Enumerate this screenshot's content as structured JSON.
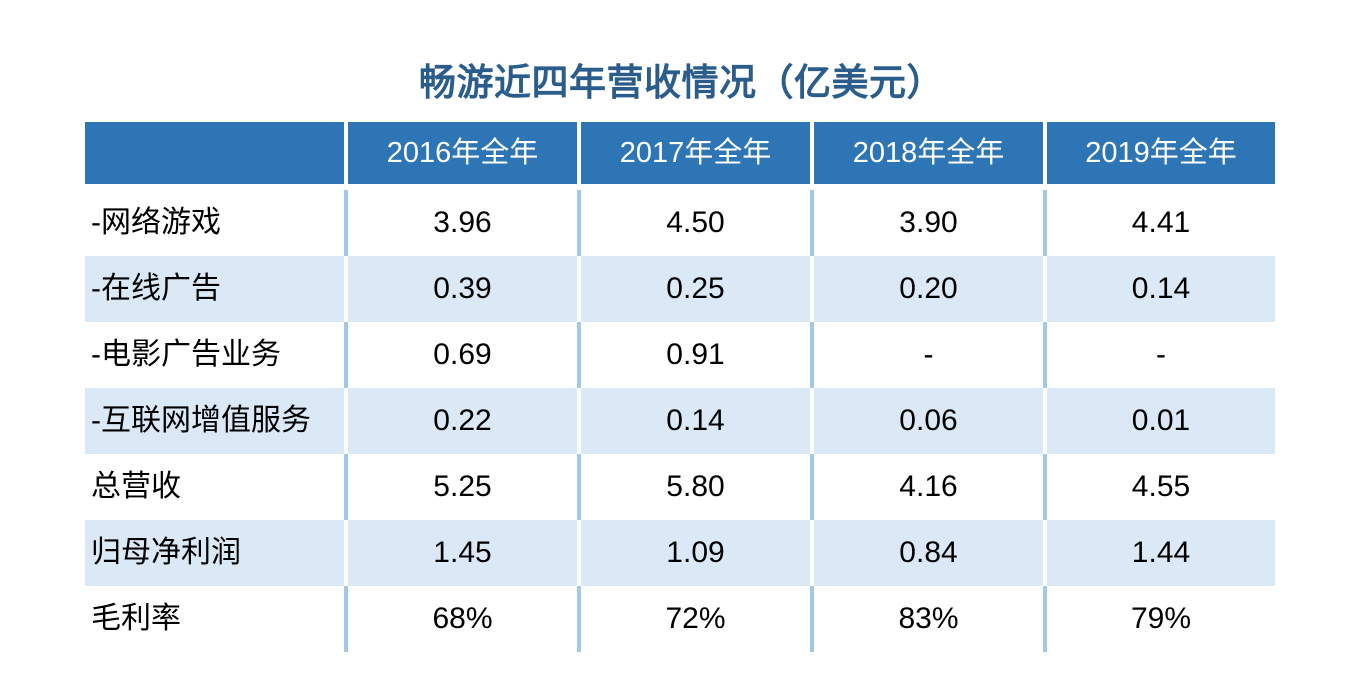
{
  "title": "畅游近四年营收情况（亿美元）",
  "colors": {
    "title_text": "#2b5d8c",
    "header_bg": "#2e75b6",
    "header_text": "#ffffff",
    "band_row_bg": "#dbe9f6",
    "column_separator": "#a3c7e8",
    "body_text": "#000000"
  },
  "chart_data": {
    "type": "table",
    "title": "畅游近四年营收情况（亿美元）",
    "corner_label": "",
    "categories": [
      "2016年全年",
      "2017年全年",
      "2018年全年",
      "2019年全年"
    ],
    "rows": [
      {
        "label": "-网络游戏",
        "values": [
          "3.96",
          "4.50",
          "3.90",
          "4.41"
        ]
      },
      {
        "label": "-在线广告",
        "values": [
          "0.39",
          "0.25",
          "0.20",
          "0.14"
        ]
      },
      {
        "label": "-电影广告业务",
        "values": [
          "0.69",
          "0.91",
          "-",
          "-"
        ]
      },
      {
        "label": "-互联网增值服务",
        "values": [
          "0.22",
          "0.14",
          "0.06",
          "0.01"
        ]
      },
      {
        "label": "总营收",
        "values": [
          "5.25",
          "5.80",
          "4.16",
          "4.55"
        ]
      },
      {
        "label": "归母净利润",
        "values": [
          "1.45",
          "1.09",
          "0.84",
          "1.44"
        ]
      },
      {
        "label": "毛利率",
        "values": [
          "68%",
          "72%",
          "83%",
          "79%"
        ]
      }
    ],
    "layout": {
      "row_banding": "alternate light blue starting at second data row",
      "first_column_align": "left",
      "value_columns_align": "center"
    }
  }
}
